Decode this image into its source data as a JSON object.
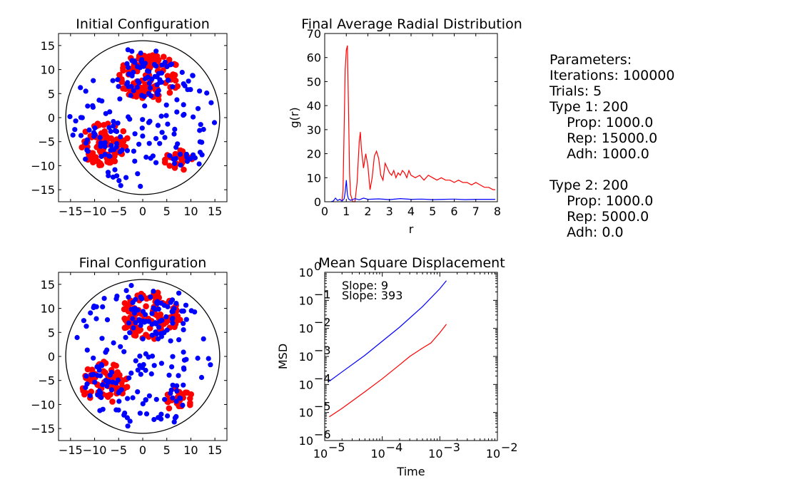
{
  "colors": {
    "type1": "#ff0000",
    "type2": "#0000ff",
    "axis": "#000000"
  },
  "parameters": {
    "lines": [
      "Parameters:",
      "Iterations: 100000",
      "Trials: 5",
      "Type 1: 200",
      "  Prop: 1000.0",
      "  Rep: 15000.0",
      "  Adh: 1000.0",
      "",
      "Type 2: 200",
      "  Prop: 1000.0",
      "  Rep: 5000.0",
      "  Adh: 0.0"
    ]
  },
  "chart_data": [
    {
      "id": "initial",
      "type": "scatter",
      "title": "Initial Configuration",
      "xlim": [
        -17.5,
        17.5
      ],
      "ylim": [
        -17.5,
        17.5
      ],
      "xticks": [
        -15,
        -10,
        -5,
        0,
        5,
        10,
        15
      ],
      "yticks": [
        -15,
        -10,
        -5,
        0,
        5,
        10,
        15
      ],
      "xtick_labels": [
        "−15",
        "−10",
        "−5",
        "0",
        "5",
        "10",
        "15"
      ],
      "ytick_labels": [
        "−15",
        "−10",
        "−5",
        "0",
        "5",
        "10",
        "15"
      ],
      "boundary_circle_radius": 16,
      "clusters": [
        {
          "series": "Type 1",
          "cx": 1.5,
          "cy": 8.5,
          "rx": 6.5,
          "ry": 5.0
        },
        {
          "series": "Type 1",
          "cx": -8.0,
          "cy": -5.5,
          "rx": 5.0,
          "ry": 4.5
        },
        {
          "series": "Type 1",
          "cx": 7.5,
          "cy": -9.0,
          "rx": 3.0,
          "ry": 2.5
        }
      ],
      "series": [
        {
          "name": "Type 1",
          "color": "#ff0000",
          "count": 200
        },
        {
          "name": "Type 2",
          "color": "#0000ff",
          "count": 200
        }
      ]
    },
    {
      "id": "final",
      "type": "scatter",
      "title": "Final Configuration",
      "xlim": [
        -17.5,
        17.5
      ],
      "ylim": [
        -17.5,
        17.5
      ],
      "xticks": [
        -15,
        -10,
        -5,
        0,
        5,
        10,
        15
      ],
      "yticks": [
        -15,
        -10,
        -5,
        0,
        5,
        10,
        15
      ],
      "xtick_labels": [
        "−15",
        "−10",
        "−5",
        "0",
        "5",
        "10",
        "15"
      ],
      "ytick_labels": [
        "−15",
        "−10",
        "−5",
        "0",
        "5",
        "10",
        "15"
      ],
      "boundary_circle_radius": 16,
      "clusters": [
        {
          "series": "Type 1",
          "cx": 1.5,
          "cy": 8.5,
          "rx": 6.5,
          "ry": 5.0
        },
        {
          "series": "Type 1",
          "cx": -8.0,
          "cy": -5.5,
          "rx": 5.0,
          "ry": 4.5
        },
        {
          "series": "Type 1",
          "cx": 7.5,
          "cy": -9.0,
          "rx": 3.0,
          "ry": 2.5
        }
      ],
      "series": [
        {
          "name": "Type 1",
          "color": "#ff0000",
          "count": 200
        },
        {
          "name": "Type 2",
          "color": "#0000ff",
          "count": 200
        }
      ]
    },
    {
      "id": "rdf",
      "type": "line",
      "title": "Final Average Radial Distribution",
      "xlabel": "r",
      "ylabel": "g(r)",
      "xlim": [
        0,
        8
      ],
      "ylim": [
        0,
        70
      ],
      "xticks": [
        0,
        1,
        2,
        3,
        4,
        5,
        6,
        7,
        8
      ],
      "yticks": [
        0,
        10,
        20,
        30,
        40,
        50,
        60,
        70
      ],
      "xtick_labels": [
        "0",
        "1",
        "2",
        "3",
        "4",
        "5",
        "6",
        "7",
        "8"
      ],
      "ytick_labels": [
        "0",
        "10",
        "20",
        "30",
        "40",
        "50",
        "60",
        "70"
      ],
      "series": [
        {
          "name": "Type 1",
          "color": "#ff0000",
          "x": [
            0.8,
            0.85,
            0.9,
            0.95,
            1.0,
            1.05,
            1.1,
            1.15,
            1.2,
            1.3,
            1.4,
            1.5,
            1.6,
            1.65,
            1.7,
            1.8,
            1.9,
            2.0,
            2.1,
            2.2,
            2.3,
            2.4,
            2.5,
            2.6,
            2.7,
            2.8,
            2.9,
            3.0,
            3.1,
            3.2,
            3.3,
            3.4,
            3.5,
            3.6,
            3.7,
            3.8,
            3.9,
            4.0,
            4.2,
            4.4,
            4.6,
            4.8,
            5.0,
            5.2,
            5.4,
            5.6,
            5.8,
            6.0,
            6.2,
            6.4,
            6.6,
            6.8,
            7.0,
            7.2,
            7.4,
            7.6,
            7.8,
            7.9
          ],
          "y": [
            0,
            5,
            30,
            55,
            63,
            65,
            40,
            12,
            3,
            0,
            0,
            8,
            25,
            29,
            22,
            14,
            20,
            15,
            5,
            10,
            19,
            21,
            18,
            11,
            9,
            16,
            14,
            12,
            11,
            13,
            10,
            12,
            11,
            13,
            12,
            10,
            13,
            11,
            10,
            11,
            9,
            11,
            10,
            9,
            10,
            9,
            9,
            8,
            9,
            8,
            8,
            7,
            8,
            7,
            6,
            6,
            5,
            5
          ]
        },
        {
          "name": "Type 2",
          "color": "#0000ff",
          "x": [
            0.3,
            0.4,
            0.5,
            0.6,
            0.7,
            0.8,
            0.9,
            0.95,
            1.0,
            1.05,
            1.1,
            1.2,
            1.4,
            1.6,
            1.8,
            2.0,
            2.5,
            3.0,
            3.5,
            4.0,
            4.5,
            5.0,
            5.5,
            6.0,
            6.5,
            7.0,
            7.5,
            7.9
          ],
          "y": [
            0,
            0.3,
            1.5,
            0.5,
            1.0,
            0.3,
            1.2,
            4,
            9,
            3,
            1.2,
            0.6,
            1.3,
            0.8,
            1.5,
            1.0,
            1.2,
            0.9,
            1.3,
            1.0,
            1.1,
            0.9,
            1.0,
            1.1,
            0.9,
            1.0,
            1.0,
            1.0
          ]
        }
      ]
    },
    {
      "id": "msd",
      "type": "line",
      "title": "Mean Square Displacement",
      "xlabel": "Time",
      "ylabel": "MSD",
      "xscale": "log",
      "yscale": "log",
      "xlim": [
        1e-05,
        0.01
      ],
      "ylim": [
        1e-06,
        1
      ],
      "xtick_exponents": [
        -5,
        -4,
        -3,
        -2
      ],
      "ytick_exponents": [
        -6,
        -5,
        -4,
        -3,
        -2,
        -1,
        0
      ],
      "annotations": [
        "Slope: 9",
        "Slope: 393"
      ],
      "series": [
        {
          "name": "Type 2",
          "color": "#0000ff",
          "x": [
            1.2e-05,
            2e-05,
            5e-05,
            0.0001,
            0.0002,
            0.0005,
            0.001,
            0.0013
          ],
          "y": [
            0.00013,
            0.00028,
            0.0011,
            0.0035,
            0.011,
            0.06,
            0.26,
            0.5
          ]
        },
        {
          "name": "Type 1",
          "color": "#ff0000",
          "x": [
            1.2e-05,
            2e-05,
            5e-05,
            0.0001,
            0.0002,
            0.0003,
            0.0005,
            0.0007,
            0.001,
            0.0013
          ],
          "y": [
            7e-06,
            1.4e-05,
            5.5e-05,
            0.00016,
            0.0005,
            0.001,
            0.002,
            0.003,
            0.007,
            0.014
          ]
        }
      ]
    }
  ]
}
